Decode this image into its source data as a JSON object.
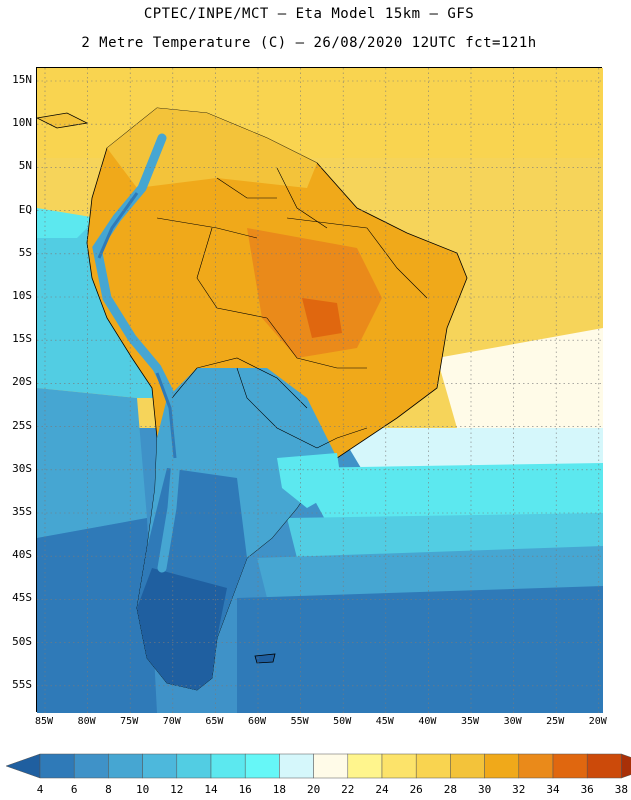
{
  "header": {
    "line1": "CPTEC/INPE/MCT –  Eta Model 15km – GFS",
    "line2": "2 Metre Temperature (C) – 26/08/2020 12UTC fct=121h"
  },
  "axes": {
    "lat_labels": [
      "15N",
      "10N",
      "5N",
      "EQ",
      "5S",
      "10S",
      "15S",
      "20S",
      "25S",
      "30S",
      "35S",
      "40S",
      "45S",
      "50S",
      "55S"
    ],
    "lon_labels": [
      "85W",
      "80W",
      "75W",
      "70W",
      "65W",
      "60W",
      "55W",
      "50W",
      "45W",
      "40W",
      "35W",
      "30W",
      "25W",
      "20W"
    ]
  },
  "colorbar": {
    "labels": [
      "4",
      "6",
      "8",
      "10",
      "12",
      "14",
      "16",
      "18",
      "20",
      "22",
      "24",
      "26",
      "28",
      "30",
      "32",
      "34",
      "36",
      "38"
    ],
    "colors": [
      "#1f5fa0",
      "#2f7ab8",
      "#3f92c8",
      "#46a6d2",
      "#4db8dc",
      "#52cde3",
      "#5ce8ef",
      "#66f7f7",
      "#d5f7fb",
      "#fffbe8",
      "#fff58d",
      "#fce36a",
      "#f9d450",
      "#f3c33a",
      "#f0a91a",
      "#ea8a1a",
      "#e0670f",
      "#cc4a0a",
      "#a83008"
    ]
  },
  "colors": {
    "ocean_warm": "#f6d45a",
    "ocean_mid": "#d5f7fb",
    "ocean_cool": "#5ce8ef",
    "ocean_cold": "#3f92c8",
    "land_warm": "#f0a91a",
    "land_hot": "#ea8a1a",
    "andes": "#46a6d2"
  }
}
